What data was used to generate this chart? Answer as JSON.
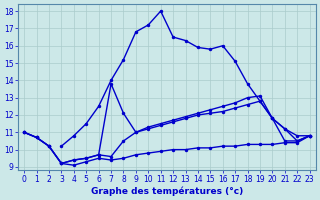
{
  "xlabel": "Graphe des températures (°c)",
  "background_color": "#cce8e8",
  "grid_color": "#aacccc",
  "line_color": "#0000cc",
  "xlim": [
    -0.5,
    23.5
  ],
  "ylim": [
    8.8,
    18.4
  ],
  "yticks": [
    9,
    10,
    11,
    12,
    13,
    14,
    15,
    16,
    17,
    18
  ],
  "xticks": [
    0,
    1,
    2,
    3,
    4,
    5,
    6,
    7,
    8,
    9,
    10,
    11,
    12,
    13,
    14,
    15,
    16,
    17,
    18,
    19,
    20,
    21,
    22,
    23
  ],
  "curve_main_x": [
    3,
    4,
    5,
    6,
    7,
    8,
    9,
    10,
    11,
    12,
    13,
    14,
    15,
    16,
    17,
    18,
    19,
    20,
    21,
    22,
    23
  ],
  "curve_main_y": [
    10.2,
    10.8,
    11.5,
    12.5,
    14.0,
    15.2,
    16.8,
    17.2,
    18.0,
    16.5,
    16.3,
    15.9,
    15.8,
    16.0,
    15.1,
    13.8,
    12.8,
    11.8,
    10.5,
    10.5,
    10.8
  ],
  "curve_mid_x": [
    0,
    1,
    2,
    3,
    4,
    5,
    6,
    7,
    8,
    9,
    10,
    11,
    12,
    13,
    14,
    15,
    16,
    17,
    18,
    19,
    20,
    21,
    22,
    23
  ],
  "curve_mid_y": [
    11.0,
    10.7,
    10.2,
    9.2,
    9.4,
    9.5,
    9.7,
    13.8,
    12.1,
    11.0,
    11.3,
    11.5,
    11.7,
    11.9,
    12.1,
    12.3,
    12.5,
    12.7,
    13.0,
    13.1,
    11.8,
    11.2,
    10.5,
    10.8
  ],
  "curve_diag_x": [
    0,
    1,
    2,
    3,
    4,
    5,
    6,
    7,
    8,
    9,
    10,
    11,
    12,
    13,
    14,
    15,
    16,
    17,
    18,
    19,
    20,
    21,
    22,
    23
  ],
  "curve_diag_y": [
    11.0,
    10.7,
    10.2,
    9.2,
    9.4,
    9.5,
    9.7,
    9.6,
    10.5,
    11.0,
    11.2,
    11.4,
    11.6,
    11.8,
    12.0,
    12.1,
    12.2,
    12.4,
    12.6,
    12.8,
    11.8,
    11.2,
    10.8,
    10.8
  ],
  "curve_bot_x": [
    0,
    1,
    2,
    3,
    4,
    5,
    6,
    7,
    8,
    9,
    10,
    11,
    12,
    13,
    14,
    15,
    16,
    17,
    18,
    19,
    20,
    21,
    22,
    23
  ],
  "curve_bot_y": [
    11.0,
    10.7,
    10.2,
    9.2,
    9.1,
    9.3,
    9.5,
    9.4,
    9.5,
    9.7,
    9.8,
    9.9,
    10.0,
    10.0,
    10.1,
    10.1,
    10.2,
    10.2,
    10.3,
    10.3,
    10.3,
    10.4,
    10.4,
    10.8
  ]
}
